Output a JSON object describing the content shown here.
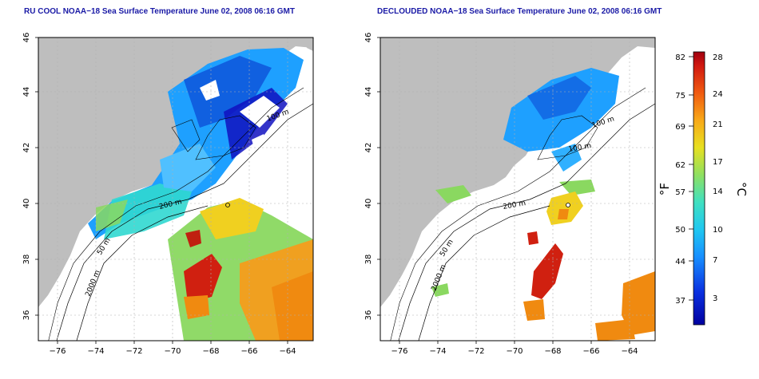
{
  "maps": [
    {
      "title": "RU COOL NOAA−18 Sea Surface Temperature June 02, 2008 06:16 GMT",
      "contour_labels": [
        "200 m",
        "2000 m",
        "50 m",
        "100 m"
      ]
    },
    {
      "title": "DECLOUDED NOAA−18 Sea Surface Temperature June 02, 2008 06:16 GMT",
      "contour_labels": [
        "200 m",
        "2000 m",
        "50 m",
        "100 m",
        "100 m"
      ]
    }
  ],
  "axes": {
    "x_ticks": [
      "−76",
      "−74",
      "−72",
      "−70",
      "−68",
      "−66",
      "−64"
    ],
    "y_ticks": [
      "46",
      "44",
      "42",
      "40",
      "38",
      "36"
    ]
  },
  "colorbar": {
    "fahrenheit_label": "°F",
    "celsius_label": "°C",
    "fahrenheit_ticks": [
      "82",
      "75",
      "69",
      "62",
      "57",
      "50",
      "44",
      "37"
    ],
    "celsius_ticks": [
      "28",
      "24",
      "21",
      "17",
      "14",
      "10",
      "7",
      "3"
    ]
  },
  "colors": {
    "land": "#bebebe",
    "title": "#1a1aa6",
    "sst_cold": "#1010c0",
    "sst_cool": "#1ea0ff",
    "sst_mild": "#30d8d0",
    "sst_green": "#8ad860",
    "sst_yellow": "#f0d020",
    "sst_orange": "#f08a10",
    "sst_hot": "#d02010"
  }
}
